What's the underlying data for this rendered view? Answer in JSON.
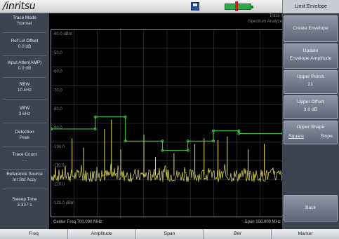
{
  "app": {
    "logo": "/inritsu",
    "save_icon": "floppy-disk-icon",
    "battery_icon": "battery-icon"
  },
  "trace_header": {
    "line1": "Trace A",
    "line2": "Spectrum Analyzer"
  },
  "left_panel": {
    "items": [
      {
        "label": "Trace Mode",
        "value": "Normal"
      },
      {
        "label": "Ref Lvl Offset",
        "value": "0.0 dB"
      },
      {
        "label": "Input Atten(AMP)",
        "value": "0.0 dB"
      },
      {
        "label": "RBW",
        "value": "10 kHz"
      },
      {
        "label": "VBW",
        "value": "3 kHz"
      },
      {
        "label": "Detection",
        "value": "Peak"
      },
      {
        "label": "Trace Count",
        "value": "- -"
      },
      {
        "label": "Reference Source",
        "value": "Int Std Accy"
      },
      {
        "label": "Sweep Time",
        "value": "3.337 s"
      }
    ]
  },
  "plot": {
    "y_ticks": [
      "-40.0 dBm",
      "-50.0",
      "-60.0",
      "-70.0",
      "-80.0",
      "-90.0",
      "-100.0",
      "-110.0",
      "-120.0",
      "-130.0 dBm"
    ],
    "footer": {
      "center": "Center Freq 700.000 MHz",
      "span": "Span 100.000 MHz"
    },
    "colors": {
      "trace": "#e8e45a",
      "envelope": "#3fd13f",
      "grid": "#3a3f48",
      "border": "#8a9099"
    }
  },
  "chart_data": {
    "type": "line",
    "ylim": [
      -140,
      -40
    ],
    "xlim": [
      650,
      750
    ],
    "y_unit": "dBm",
    "envelope_points": [
      {
        "x": 650.0,
        "y": -93.0
      },
      {
        "x": 669.0,
        "y": -93.0
      },
      {
        "x": 669.0,
        "y": -86.5
      },
      {
        "x": 682.0,
        "y": -86.5
      },
      {
        "x": 682.0,
        "y": -99.5
      },
      {
        "x": 698.0,
        "y": -99.5
      },
      {
        "x": 698.0,
        "y": -104.5
      },
      {
        "x": 709.0,
        "y": -104.5
      },
      {
        "x": 709.0,
        "y": -99.5
      },
      {
        "x": 720.0,
        "y": -99.5
      },
      {
        "x": 720.0,
        "y": -94.0
      },
      {
        "x": 731.0,
        "y": -94.0
      },
      {
        "x": 731.0,
        "y": -95.5
      },
      {
        "x": 750.0,
        "y": -95.5
      }
    ],
    "trace_noise_floor": -118,
    "trace_spikes": [
      {
        "x": 659,
        "y": -98
      },
      {
        "x": 664,
        "y": -103
      },
      {
        "x": 673,
        "y": -93
      },
      {
        "x": 676,
        "y": -88
      },
      {
        "x": 680,
        "y": -104
      },
      {
        "x": 690,
        "y": -96
      },
      {
        "x": 695,
        "y": -108
      },
      {
        "x": 703,
        "y": -106
      },
      {
        "x": 712,
        "y": -101
      },
      {
        "x": 716,
        "y": -98
      },
      {
        "x": 722,
        "y": -99
      },
      {
        "x": 726,
        "y": -97
      },
      {
        "x": 735,
        "y": -104
      },
      {
        "x": 742,
        "y": -101
      }
    ]
  },
  "right_panel": {
    "title": "Limit Envelope",
    "keys": [
      {
        "l1": "Create Envelope",
        "l2": ""
      },
      {
        "l1": "Update",
        "l2": "Envelope Amplitude"
      },
      {
        "l1": "Upper Points",
        "l2": "21"
      },
      {
        "l1": "Upper Offset",
        "l2": "3.0 dB"
      },
      {
        "l1": "Upper Shape",
        "opt_a": "Square",
        "opt_b": "Slope"
      },
      {
        "l1": "Back",
        "l2": ""
      }
    ]
  },
  "bottom_tabs": [
    "Freq",
    "Amplitude",
    "Span",
    "BW",
    "Marker"
  ]
}
